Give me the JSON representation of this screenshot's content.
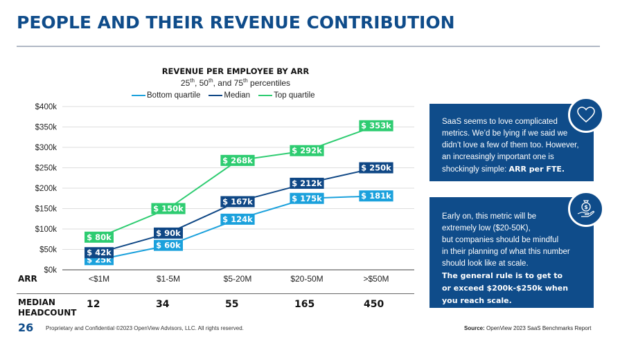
{
  "page": {
    "title": "PEOPLE AND THEIR REVENUE CONTRIBUTION",
    "page_number": "26",
    "footer": "Proprietary and Confidential ©2023 OpenView Advisors, LLC. All rights reserved.",
    "source_label": "Source:",
    "source_text": "OpenView 2023 SaaS Benchmarks Report"
  },
  "chart_data": {
    "type": "line",
    "title": "REVENUE PER EMPLOYEE BY ARR",
    "subtitle_parts": [
      "25",
      "th",
      ", 50",
      "th",
      ", and 75",
      "th",
      " percentiles"
    ],
    "xlabel": "ARR",
    "ylabel": "",
    "categories": [
      "<$1M",
      "$1-5M",
      "$5-20M",
      "$20-50M",
      ">$50M"
    ],
    "ylim": [
      0,
      400
    ],
    "yticks": [
      0,
      50,
      100,
      150,
      200,
      250,
      300,
      350,
      400
    ],
    "ytick_labels": [
      "$0k",
      "$50k",
      "$100k",
      "$150k",
      "$200k",
      "$250k",
      "$300k",
      "$350k",
      "$400k"
    ],
    "grid": true,
    "legend_position": "top",
    "series": [
      {
        "name": "Bottom quartile",
        "color": "#1ba1dc",
        "values": [
          25,
          60,
          124,
          175,
          181
        ],
        "labels": [
          "$ 25k",
          "$ 60k",
          "$ 124k",
          "$ 175k",
          "$ 181k"
        ]
      },
      {
        "name": "Median",
        "color": "#0f4785",
        "values": [
          42,
          90,
          167,
          212,
          250
        ],
        "labels": [
          "$ 42k",
          "$ 90k",
          "$ 167k",
          "$ 212k",
          "$ 250k"
        ]
      },
      {
        "name": "Top quartile",
        "color": "#2ecc71",
        "values": [
          80,
          150,
          268,
          292,
          353
        ],
        "labels": [
          "$ 80k",
          "$ 150k",
          "$ 268k",
          "$ 292k",
          "$ 353k"
        ]
      }
    ],
    "headcount_label_1": "MEDIAN",
    "headcount_label_2": "HEADCOUNT",
    "median_headcount": [
      "12",
      "34",
      "55",
      "165",
      "450"
    ]
  },
  "callouts": [
    {
      "icon": "heart-icon",
      "lines": [
        "SaaS seems to love complicated",
        "metrics. We’d be lying if we said we",
        "didn’t love a few of them too. However,",
        "an increasingly important one is"
      ],
      "last_plain": "shockingly simple: ",
      "last_bold": "ARR per FTE."
    },
    {
      "icon": "money-bag-hand-icon",
      "lines": [
        "Early on, this metric will be",
        "extremely low ($20-50K),",
        "but companies should be mindful",
        "in their planning of what this number",
        "should look like at scale."
      ],
      "bold_lines": [
        "The general rule is to get to",
        "or exceed $200k-$250k when",
        "you reach scale."
      ]
    }
  ]
}
